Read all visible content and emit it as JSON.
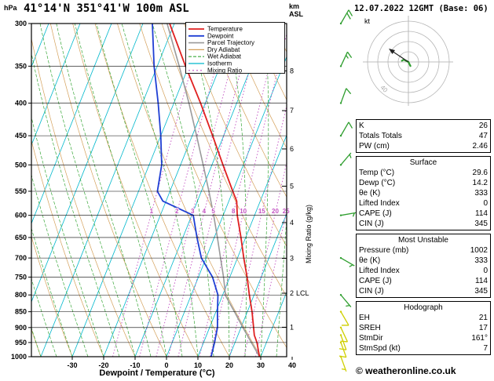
{
  "header": {
    "title": "41°14'N 351°41'W 100m ASL",
    "date": "12.07.2022 12GMT (Base: 06)"
  },
  "axes": {
    "pressure_unit": "hPa",
    "altitude_unit_line1": "km",
    "altitude_unit_line2": "ASL",
    "xlabel": "Dewpoint / Temperature (°C)",
    "mixing_ratio_label": "Mixing Ratio (g/kg)",
    "lcl_label": "LCL",
    "pressure_ticks": [
      300,
      350,
      400,
      450,
      500,
      550,
      600,
      650,
      700,
      750,
      800,
      850,
      900,
      950,
      1000
    ],
    "temp_ticks": [
      -30,
      -20,
      -10,
      0,
      10,
      20,
      30,
      40
    ],
    "km_levels": [
      {
        "km": 1,
        "p": 899
      },
      {
        "km": 2,
        "p": 795
      },
      {
        "km": 3,
        "p": 701
      },
      {
        "km": 4,
        "p": 616
      },
      {
        "km": 5,
        "p": 540
      },
      {
        "km": 6,
        "p": 472
      },
      {
        "km": 7,
        "p": 411
      },
      {
        "km": 8,
        "p": 356
      }
    ]
  },
  "legend": [
    {
      "label": "Temperature",
      "color": "#e02020",
      "width": 1.8,
      "dash": "none"
    },
    {
      "label": "Dewpoint",
      "color": "#1f3fd4",
      "width": 1.8,
      "dash": "none"
    },
    {
      "label": "Parcel Trajectory",
      "color": "#9a9a9a",
      "width": 1.6,
      "dash": "none"
    },
    {
      "label": "Dry Adiabat",
      "color": "#d4a05a",
      "width": 1.2,
      "dash": "none"
    },
    {
      "label": "Wet Adiabat",
      "color": "#3aa83a",
      "width": 1.2,
      "dash": "4 2"
    },
    {
      "label": "Isotherm",
      "color": "#00b8cc",
      "width": 1.2,
      "dash": "none"
    },
    {
      "label": "Mixing Ratio",
      "color": "#c353c3",
      "width": 1.2,
      "dash": "2 3"
    }
  ],
  "chart_data": {
    "type": "line",
    "diagram": "skew-t-log-p",
    "pressure_range_hpa": [
      300,
      1000
    ],
    "temp_axis_c": [
      -40,
      40
    ],
    "colors": {
      "temperature": "#e02020",
      "dewpoint": "#1f3fd4",
      "parcel": "#9a9a9a",
      "dry_adiabat": "#d4a05a",
      "wet_adiabat": "#3aa83a",
      "isotherm": "#00b8cc",
      "mixing_ratio": "#c353c3",
      "barb_upper": "#2f9e2f",
      "barb_lower": "#cfcf00"
    },
    "sounding": {
      "pressure": [
        1000,
        950,
        925,
        900,
        850,
        800,
        750,
        700,
        650,
        600,
        570,
        550,
        500,
        450,
        400,
        350,
        300
      ],
      "temperature": [
        29.6,
        27.0,
        25.2,
        24.0,
        21.5,
        18.5,
        15.5,
        12.0,
        8.5,
        4.5,
        2.5,
        0.0,
        -6.5,
        -13.5,
        -21.5,
        -31.0,
        -41.5
      ],
      "dewpoint": [
        14.2,
        13.5,
        13.0,
        12.5,
        10.5,
        8.5,
        4.5,
        -1.5,
        -5.5,
        -9.5,
        -21.0,
        -24.0,
        -26.0,
        -30.0,
        -35.0,
        -41.0,
        -47.0
      ]
    },
    "parcel": {
      "pressure": [
        1000,
        950,
        900,
        850,
        802,
        750,
        700,
        650,
        600,
        550,
        500,
        450,
        400,
        350,
        300
      ],
      "temperature": [
        29.6,
        25.2,
        20.6,
        15.9,
        11.0,
        8.0,
        4.6,
        1.0,
        -3.0,
        -7.6,
        -12.8,
        -18.6,
        -25.2,
        -33.0,
        -42.3
      ]
    },
    "lcl_pressure": 795,
    "isotherms_c": {
      "min": -120,
      "max": 40,
      "step": 10
    },
    "dry_adiabats_c": {
      "min": -40,
      "max": 120,
      "step": 10
    },
    "wet_adiabats_c": {
      "min": -40,
      "max": 40,
      "step": 5
    },
    "mixing_ratio_g_kg": [
      1,
      2,
      3,
      4,
      5,
      8,
      10,
      15,
      20,
      25
    ],
    "wind_barbs": [
      {
        "p": 300,
        "dir": 30,
        "spd": 20,
        "color": "green"
      },
      {
        "p": 350,
        "dir": 25,
        "spd": 15,
        "color": "green"
      },
      {
        "p": 400,
        "dir": 20,
        "spd": 10,
        "color": "green"
      },
      {
        "p": 450,
        "dir": 30,
        "spd": 10,
        "color": "green"
      },
      {
        "p": 500,
        "dir": 40,
        "spd": 5,
        "color": "green"
      },
      {
        "p": 600,
        "dir": 80,
        "spd": 5,
        "color": "green"
      },
      {
        "p": 700,
        "dir": 120,
        "spd": 5,
        "color": "green"
      },
      {
        "p": 800,
        "dir": 140,
        "spd": 5,
        "color": "green"
      },
      {
        "p": 850,
        "dir": 150,
        "spd": 10,
        "color": "yellow"
      },
      {
        "p": 900,
        "dir": 155,
        "spd": 10,
        "color": "yellow"
      },
      {
        "p": 925,
        "dir": 160,
        "spd": 10,
        "color": "yellow"
      },
      {
        "p": 950,
        "dir": 160,
        "spd": 10,
        "color": "yellow"
      },
      {
        "p": 1000,
        "dir": 160,
        "spd": 7,
        "color": "yellow"
      }
    ]
  },
  "hodograph": {
    "unit_label": "kt",
    "ring_label": "40",
    "rings_kt": [
      10,
      20,
      30,
      40
    ]
  },
  "table": {
    "sections": [
      {
        "header": null,
        "rows": [
          {
            "label": "K",
            "value": "26"
          },
          {
            "label": "Totals Totals",
            "value": "47"
          },
          {
            "label": "PW (cm)",
            "value": "2.46"
          }
        ]
      },
      {
        "header": "Surface",
        "rows": [
          {
            "label": "Temp (°C)",
            "value": "29.6"
          },
          {
            "label": "Dewp (°C)",
            "value": "14.2"
          },
          {
            "label": "θe (K)",
            "value": "333"
          },
          {
            "label": "Lifted Index",
            "value": "0"
          },
          {
            "label": "CAPE (J)",
            "value": "114"
          },
          {
            "label": "CIN (J)",
            "value": "345"
          }
        ]
      },
      {
        "header": "Most Unstable",
        "rows": [
          {
            "label": "Pressure (mb)",
            "value": "1002"
          },
          {
            "label": "θe (K)",
            "value": "333"
          },
          {
            "label": "Lifted Index",
            "value": "0"
          },
          {
            "label": "CAPE (J)",
            "value": "114"
          },
          {
            "label": "CIN (J)",
            "value": "345"
          }
        ]
      },
      {
        "header": "Hodograph",
        "rows": [
          {
            "label": "EH",
            "value": "21"
          },
          {
            "label": "SREH",
            "value": "17"
          },
          {
            "label": "StmDir",
            "value": "161°"
          },
          {
            "label": "StmSpd (kt)",
            "value": "7"
          }
        ]
      }
    ]
  },
  "footer": {
    "copyright": "© weatheronline.co.uk"
  }
}
